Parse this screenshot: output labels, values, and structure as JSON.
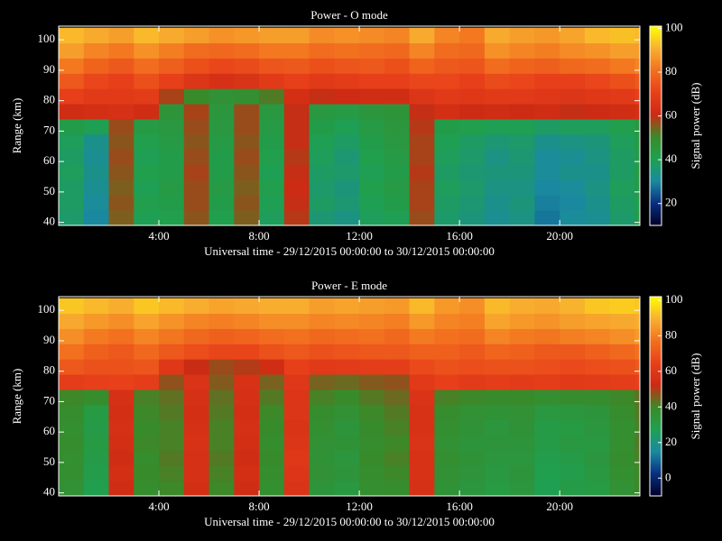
{
  "chart_data": [
    {
      "type": "heatmap",
      "title": "Power - O mode",
      "xlabel": "Universal time - 29/12/2015 00:00:00 to 30/12/2015 00:00:00",
      "ylabel": "Range (km)",
      "colorbar_label": "Signal power (dB)",
      "x_edges": [
        0,
        1,
        2,
        3,
        4,
        5,
        6,
        7,
        8,
        9,
        10,
        11,
        12,
        13,
        14,
        15,
        16,
        17,
        18,
        19,
        20,
        21,
        22,
        23,
        23.2
      ],
      "y_edges": [
        39,
        44,
        49,
        54,
        59,
        64,
        69,
        74,
        79,
        84,
        89,
        94,
        99,
        104
      ],
      "z": [
        [
          37,
          30,
          55,
          40,
          41,
          56,
          41,
          55,
          39,
          59,
          36,
          34,
          39,
          40,
          57,
          37,
          35,
          32,
          34,
          28,
          31,
          32,
          37,
          42
        ],
        [
          38,
          31,
          56,
          41,
          42,
          57,
          42,
          56,
          40,
          60,
          38,
          36,
          40,
          42,
          58,
          38,
          36,
          33,
          35,
          29,
          30,
          33,
          38,
          41
        ],
        [
          38,
          32,
          55,
          40,
          43,
          57,
          43,
          55,
          41,
          61,
          37,
          35,
          41,
          43,
          58,
          39,
          37,
          34,
          34,
          30,
          31,
          34,
          39,
          42
        ],
        [
          39,
          33,
          56,
          41,
          42,
          58,
          42,
          56,
          40,
          60,
          38,
          37,
          40,
          42,
          59,
          38,
          36,
          35,
          35,
          31,
          33,
          33,
          38,
          43
        ],
        [
          38,
          32,
          57,
          40,
          42,
          57,
          42,
          57,
          41,
          59,
          39,
          36,
          41,
          43,
          58,
          39,
          37,
          34,
          36,
          31,
          32,
          34,
          38,
          42
        ],
        [
          39,
          33,
          56,
          41,
          43,
          56,
          43,
          56,
          42,
          60,
          40,
          38,
          42,
          44,
          58,
          40,
          38,
          36,
          37,
          33,
          34,
          35,
          39,
          43
        ],
        [
          42,
          40,
          57,
          43,
          44,
          57,
          44,
          57,
          43,
          60,
          42,
          40,
          43,
          45,
          59,
          42,
          41,
          40,
          40,
          38,
          39,
          39,
          41,
          44
        ],
        [
          62,
          63,
          64,
          62,
          46,
          58,
          45,
          57,
          44,
          60,
          44,
          43,
          45,
          46,
          60,
          63,
          61,
          62,
          61,
          62,
          60,
          61,
          62,
          63
        ],
        [
          70,
          68,
          68,
          69,
          58,
          50,
          47,
          48,
          52,
          63,
          60,
          61,
          62,
          62,
          66,
          68,
          67,
          68,
          68,
          67,
          66,
          67,
          68,
          70
        ],
        [
          76,
          72,
          70,
          74,
          70,
          66,
          64,
          65,
          68,
          70,
          68,
          69,
          70,
          70,
          72,
          72,
          70,
          73,
          72,
          70,
          70,
          72,
          74,
          76
        ],
        [
          82,
          78,
          76,
          80,
          77,
          74,
          72,
          73,
          75,
          76,
          74,
          75,
          76,
          74,
          78,
          76,
          75,
          80,
          78,
          77,
          79,
          80,
          82,
          84
        ],
        [
          88,
          84,
          82,
          86,
          83,
          80,
          79,
          80,
          82,
          82,
          80,
          81,
          80,
          79,
          84,
          80,
          79,
          86,
          84,
          83,
          85,
          86,
          88,
          88
        ],
        [
          92,
          90,
          88,
          92,
          90,
          88,
          86,
          87,
          88,
          88,
          85,
          86,
          85,
          84,
          90,
          84,
          82,
          90,
          88,
          87,
          89,
          92,
          93,
          92
        ]
      ],
      "xlim": [
        0,
        23.2
      ],
      "ylim": [
        39,
        104.5
      ],
      "zlim": [
        10,
        101
      ],
      "xticks": [
        {
          "value": 4,
          "label": "4:00"
        },
        {
          "value": 8,
          "label": "8:00"
        },
        {
          "value": 12,
          "label": "12:00"
        },
        {
          "value": 16,
          "label": "16:00"
        },
        {
          "value": 20,
          "label": "20:00"
        }
      ],
      "yticks": [
        40,
        50,
        60,
        70,
        80,
        90,
        100
      ],
      "zticks": [
        20,
        40,
        60,
        80,
        100
      ],
      "colormap": [
        "#000028",
        "#0a2e80",
        "#1a8aa0",
        "#1fa050",
        "#3a8a28",
        "#cc2a14",
        "#e8401a",
        "#f2701e",
        "#f8b030",
        "#ffff00"
      ]
    },
    {
      "type": "heatmap",
      "title": "Power - E mode",
      "xlabel": "Universal time - 29/12/2015 00:00:00 to 30/12/2015 00:00:00",
      "ylabel": "Range (km)",
      "colorbar_label": "Signal power (dB)",
      "x_edges": [
        0,
        1,
        2,
        3,
        4,
        5,
        6,
        7,
        8,
        9,
        10,
        11,
        12,
        13,
        14,
        15,
        16,
        17,
        18,
        19,
        20,
        21,
        22,
        23,
        23.2
      ],
      "y_edges": [
        39,
        44,
        49,
        54,
        59,
        64,
        69,
        74,
        79,
        84,
        89,
        94,
        99,
        104
      ],
      "z": [
        [
          36,
          28,
          54,
          38,
          40,
          55,
          40,
          54,
          37,
          58,
          34,
          32,
          37,
          38,
          56,
          35,
          33,
          31,
          33,
          27,
          30,
          31,
          36,
          40
        ],
        [
          37,
          29,
          55,
          39,
          41,
          56,
          41,
          55,
          38,
          59,
          36,
          34,
          38,
          40,
          57,
          36,
          34,
          32,
          34,
          28,
          29,
          32,
          37,
          40
        ],
        [
          37,
          30,
          54,
          38,
          42,
          56,
          42,
          54,
          39,
          60,
          35,
          33,
          39,
          41,
          57,
          37,
          35,
          33,
          33,
          29,
          30,
          33,
          38,
          41
        ],
        [
          38,
          31,
          55,
          40,
          41,
          57,
          41,
          55,
          38,
          59,
          36,
          35,
          38,
          40,
          58,
          36,
          34,
          34,
          34,
          30,
          32,
          32,
          37,
          42
        ],
        [
          37,
          30,
          56,
          39,
          41,
          56,
          41,
          56,
          39,
          58,
          37,
          34,
          39,
          41,
          57,
          37,
          35,
          33,
          35,
          30,
          31,
          33,
          37,
          41
        ],
        [
          38,
          31,
          55,
          40,
          42,
          55,
          42,
          55,
          40,
          59,
          38,
          36,
          40,
          42,
          57,
          38,
          36,
          35,
          36,
          32,
          33,
          34,
          38,
          42
        ],
        [
          40,
          38,
          56,
          41,
          43,
          56,
          43,
          56,
          42,
          59,
          41,
          39,
          42,
          44,
          58,
          41,
          40,
          39,
          39,
          37,
          38,
          38,
          40,
          43
        ],
        [
          63,
          64,
          65,
          63,
          47,
          58,
          46,
          57,
          45,
          60,
          45,
          44,
          46,
          47,
          61,
          64,
          62,
          63,
          62,
          63,
          61,
          62,
          63,
          64
        ],
        [
          71,
          69,
          69,
          70,
          60,
          52,
          48,
          50,
          54,
          64,
          61,
          62,
          63,
          63,
          67,
          69,
          68,
          69,
          69,
          68,
          67,
          68,
          69,
          71
        ],
        [
          77,
          73,
          71,
          75,
          71,
          68,
          66,
          66,
          69,
          71,
          69,
          70,
          71,
          71,
          73,
          73,
          71,
          74,
          73,
          71,
          71,
          73,
          75,
          77
        ],
        [
          83,
          79,
          77,
          81,
          78,
          75,
          73,
          74,
          76,
          77,
          75,
          76,
          77,
          75,
          79,
          77,
          76,
          81,
          79,
          78,
          80,
          81,
          83,
          85
        ],
        [
          88,
          85,
          83,
          87,
          84,
          81,
          80,
          81,
          83,
          83,
          81,
          82,
          81,
          80,
          85,
          81,
          80,
          87,
          85,
          84,
          86,
          87,
          88,
          89
        ],
        [
          93,
          91,
          89,
          93,
          91,
          89,
          87,
          88,
          89,
          89,
          86,
          87,
          86,
          85,
          91,
          85,
          83,
          91,
          89,
          88,
          90,
          93,
          94,
          93
        ]
      ],
      "xlim": [
        0,
        23.2
      ],
      "ylim": [
        39,
        104.5
      ],
      "zlim": [
        -10,
        102
      ],
      "xticks": [
        {
          "value": 4,
          "label": "4:00"
        },
        {
          "value": 8,
          "label": "8:00"
        },
        {
          "value": 12,
          "label": "12:00"
        },
        {
          "value": 16,
          "label": "16:00"
        },
        {
          "value": 20,
          "label": "20:00"
        }
      ],
      "yticks": [
        40,
        50,
        60,
        70,
        80,
        90,
        100
      ],
      "zticks": [
        0,
        20,
        40,
        60,
        80,
        100
      ],
      "colormap": [
        "#000028",
        "#0a2e80",
        "#1a8aa0",
        "#1fa050",
        "#3a8a28",
        "#cc2a14",
        "#e8401a",
        "#f2701e",
        "#f8b030",
        "#ffff00"
      ]
    }
  ]
}
